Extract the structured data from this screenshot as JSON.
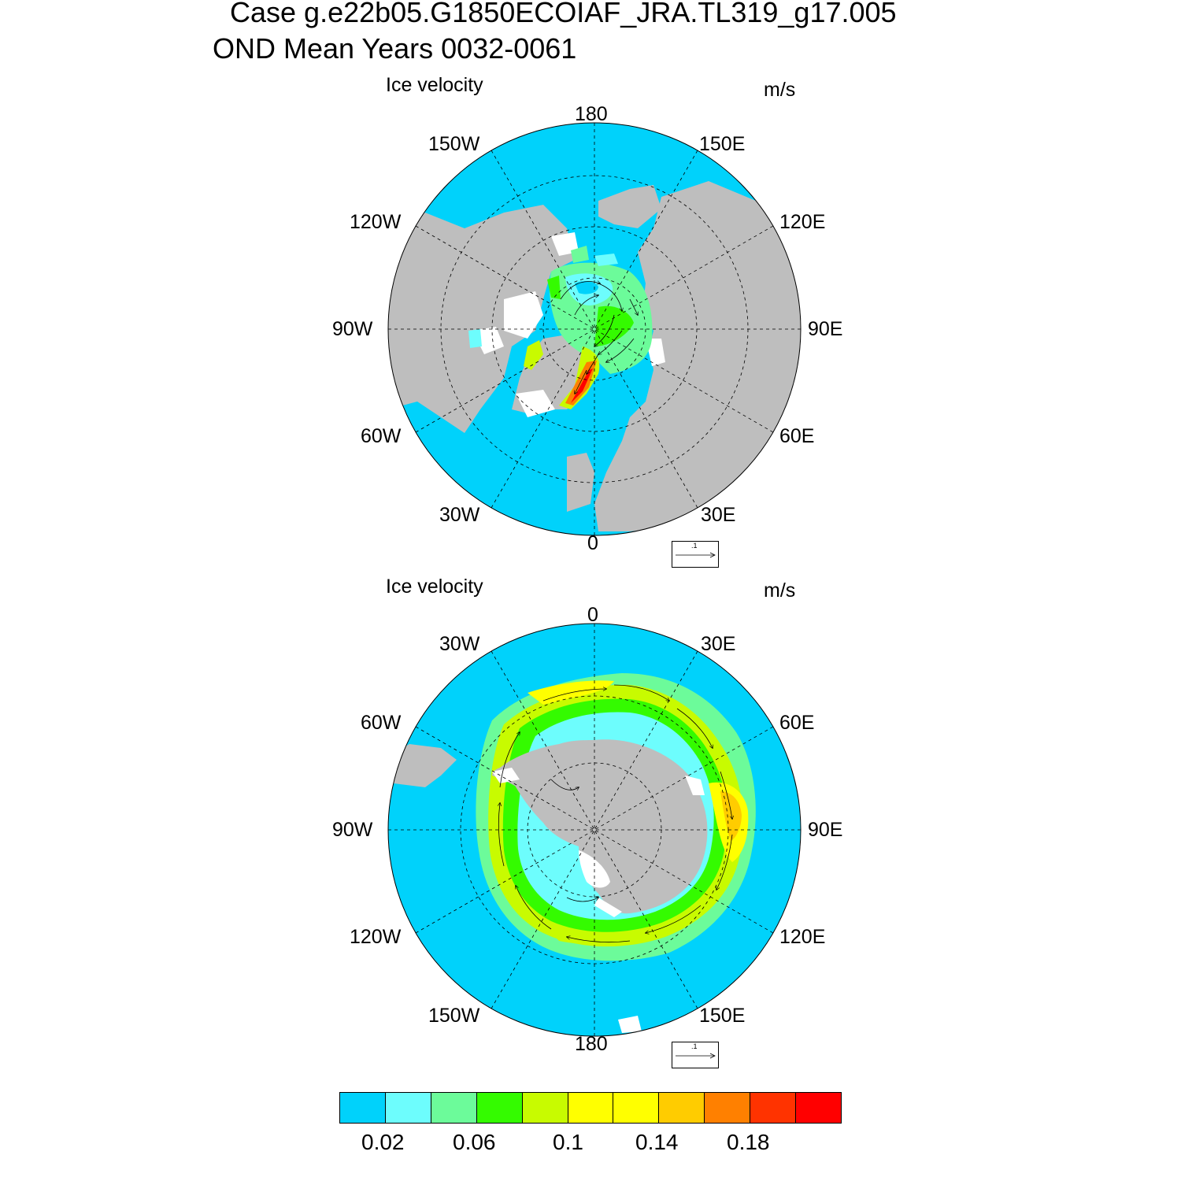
{
  "title": {
    "line1": "Case g.e22b05.G1850ECOIAF_JRA.TL319_g17.005",
    "line2": "OND Mean   Years 0032-0061"
  },
  "panels": [
    {
      "name": "north",
      "title": "Ice velocity",
      "units": "m/s",
      "lon_labels": [
        "180",
        "150W",
        "150E",
        "120W",
        "120E",
        "90W",
        "90E",
        "60W",
        "60E",
        "30W",
        "30E",
        "0"
      ],
      "ref_vector": ".1"
    },
    {
      "name": "south",
      "title": "Ice velocity",
      "units": "m/s",
      "lon_labels": [
        "0",
        "30W",
        "30E",
        "60W",
        "60E",
        "90W",
        "90E",
        "120W",
        "120E",
        "150W",
        "150E",
        "180"
      ],
      "ref_vector": ".1"
    }
  ],
  "colorbar": {
    "colors": [
      "#00d2fb",
      "#6dfdfd",
      "#6cfb9a",
      "#34fb00",
      "#c8fb00",
      "#ffff00",
      "#ffff00",
      "#ffcc00",
      "#ff8000",
      "#ff3300",
      "#ff0000"
    ],
    "labels": [
      "0.02",
      "0.06",
      "0.1",
      "0.14",
      "0.18"
    ]
  },
  "colors": {
    "ocean": "#00d2fb",
    "land": "#bebebe",
    "no_ice_white": "#ffffff"
  }
}
